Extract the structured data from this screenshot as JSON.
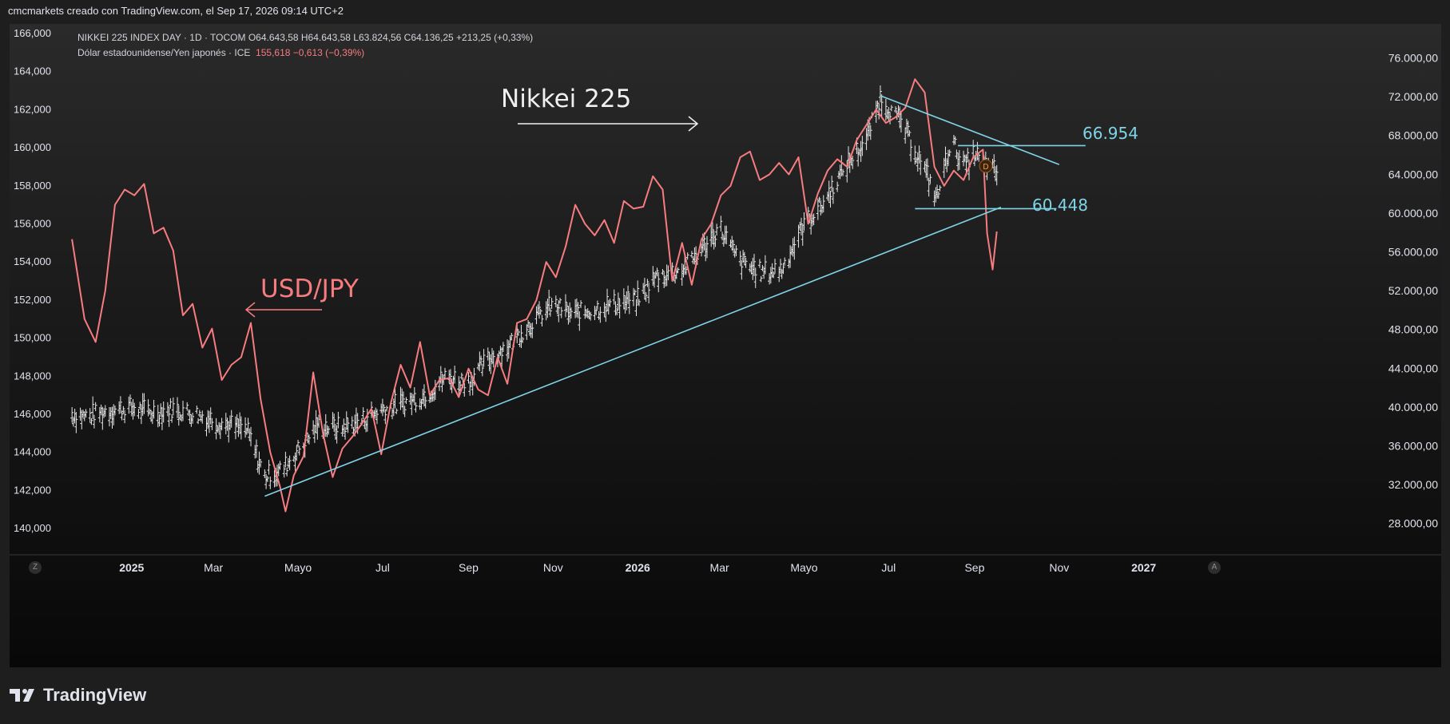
{
  "header": {
    "attribution": "cmcmarkets creado con TradingView.com, el Sep 17, 2026 09:14 UTC+2"
  },
  "legend": {
    "line1": "NIKKEI 225 INDEX DAY · 1D · TOCOM  O64.643,58  H64.643,58  L63.824,56  C64.136,25  +213,25 (+0,33%)",
    "line2_label": "Dólar estadounidense/Yen japonés · ICE",
    "line2_values": "155,618  −0,613 (−0,39%)"
  },
  "annotations": {
    "nikkei_label": "Nikkei 225",
    "usdjpy_label": "USD/JPY",
    "level_upper": "66.954",
    "level_lower": "60.448",
    "marker": "D"
  },
  "footer": {
    "brand": "TradingView"
  },
  "badges": {
    "left": "Z",
    "right": "A"
  },
  "colors": {
    "usdjpy": "#f77c80",
    "nikkei": "#e8e8e8",
    "trendline": "#7fd4e8",
    "background": "#1e1e1e"
  },
  "chart_data": {
    "type": "line",
    "x_ticks": [
      "2025",
      "Mar",
      "Mayo",
      "Jul",
      "Sep",
      "Nov",
      "2026",
      "Mar",
      "Mayo",
      "Jul",
      "Sep",
      "Nov",
      "2027"
    ],
    "left_axis": {
      "range": [
        139000,
        166500
      ],
      "ticks": [
        "166,000",
        "164,000",
        "162,000",
        "160,000",
        "158,000",
        "156,000",
        "154,000",
        "152,000",
        "150,000",
        "148,000",
        "146,000",
        "144,000",
        "142,000",
        "140,000"
      ]
    },
    "right_axis": {
      "range": [
        25500,
        79500
      ],
      "ticks": [
        "76.000,00",
        "72.000,00",
        "68.000,00",
        "64.000,00",
        "60.000,00",
        "56.000,00",
        "52.000,00",
        "48.000,00",
        "44.000,00",
        "40.000,00",
        "36.000,00",
        "32.000,00",
        "28.000,00"
      ]
    },
    "series": [
      {
        "name": "Dólar estadounidense/Yen japonés",
        "axis": "left",
        "points": [
          [
            "2024-11-19",
            155.2
          ],
          [
            "2024-11-28",
            151.0
          ],
          [
            "2024-12-06",
            149.8
          ],
          [
            "2024-12-13",
            152.5
          ],
          [
            "2024-12-20",
            157.0
          ],
          [
            "2024-12-27",
            157.8
          ],
          [
            "2025-01-03",
            157.5
          ],
          [
            "2025-01-10",
            158.1
          ],
          [
            "2025-01-17",
            155.5
          ],
          [
            "2025-01-24",
            155.8
          ],
          [
            "2025-01-31",
            154.6
          ],
          [
            "2025-02-07",
            151.2
          ],
          [
            "2025-02-14",
            151.8
          ],
          [
            "2025-02-21",
            149.5
          ],
          [
            "2025-02-28",
            150.5
          ],
          [
            "2025-03-07",
            147.8
          ],
          [
            "2025-03-14",
            148.6
          ],
          [
            "2025-03-21",
            149.0
          ],
          [
            "2025-03-28",
            150.8
          ],
          [
            "2025-04-04",
            146.8
          ],
          [
            "2025-04-11",
            144.0
          ],
          [
            "2025-04-18",
            142.2
          ],
          [
            "2025-04-22",
            140.9
          ],
          [
            "2025-04-28",
            142.8
          ],
          [
            "2025-05-05",
            143.8
          ],
          [
            "2025-05-12",
            148.2
          ],
          [
            "2025-05-19",
            145.0
          ],
          [
            "2025-05-26",
            142.7
          ],
          [
            "2025-06-02",
            144.2
          ],
          [
            "2025-06-09",
            144.8
          ],
          [
            "2025-06-16",
            145.5
          ],
          [
            "2025-06-23",
            146.3
          ],
          [
            "2025-06-30",
            143.9
          ],
          [
            "2025-07-07",
            146.6
          ],
          [
            "2025-07-14",
            148.6
          ],
          [
            "2025-07-21",
            147.4
          ],
          [
            "2025-07-28",
            149.8
          ],
          [
            "2025-08-04",
            147.0
          ],
          [
            "2025-08-11",
            147.8
          ],
          [
            "2025-08-18",
            147.9
          ],
          [
            "2025-08-25",
            146.9
          ],
          [
            "2025-09-01",
            148.4
          ],
          [
            "2025-09-08",
            147.3
          ],
          [
            "2025-09-15",
            147.0
          ],
          [
            "2025-09-22",
            149.0
          ],
          [
            "2025-09-29",
            147.6
          ],
          [
            "2025-10-06",
            150.8
          ],
          [
            "2025-10-13",
            151.0
          ],
          [
            "2025-10-20",
            152.0
          ],
          [
            "2025-10-27",
            154.0
          ],
          [
            "2025-11-03",
            153.2
          ],
          [
            "2025-11-10",
            154.8
          ],
          [
            "2025-11-17",
            157.0
          ],
          [
            "2025-11-24",
            156.0
          ],
          [
            "2025-12-01",
            155.4
          ],
          [
            "2025-12-08",
            156.2
          ],
          [
            "2025-12-15",
            155.0
          ],
          [
            "2025-12-22",
            157.2
          ],
          [
            "2025-12-29",
            156.8
          ],
          [
            "2026-01-05",
            156.9
          ],
          [
            "2026-01-12",
            158.5
          ],
          [
            "2026-01-19",
            157.8
          ],
          [
            "2026-01-26",
            153.0
          ],
          [
            "2026-02-02",
            155.0
          ],
          [
            "2026-02-09",
            152.8
          ],
          [
            "2026-02-16",
            155.2
          ],
          [
            "2026-02-23",
            156.0
          ],
          [
            "2026-03-02",
            157.5
          ],
          [
            "2026-03-09",
            158.0
          ],
          [
            "2026-03-16",
            159.5
          ],
          [
            "2026-03-23",
            159.8
          ],
          [
            "2026-03-30",
            158.3
          ],
          [
            "2026-04-06",
            158.6
          ],
          [
            "2026-04-13",
            159.2
          ],
          [
            "2026-04-20",
            158.6
          ],
          [
            "2026-04-27",
            159.5
          ],
          [
            "2026-05-04",
            156.0
          ],
          [
            "2026-05-11",
            157.6
          ],
          [
            "2026-05-18",
            158.8
          ],
          [
            "2026-05-25",
            159.4
          ],
          [
            "2026-06-01",
            159.0
          ],
          [
            "2026-06-08",
            160.4
          ],
          [
            "2026-06-15",
            161.2
          ],
          [
            "2026-06-22",
            162.0
          ],
          [
            "2026-06-29",
            161.3
          ],
          [
            "2026-07-06",
            161.6
          ],
          [
            "2026-07-13",
            162.1
          ],
          [
            "2026-07-20",
            163.6
          ],
          [
            "2026-07-27",
            162.9
          ],
          [
            "2026-08-03",
            159.0
          ],
          [
            "2026-08-10",
            158.0
          ],
          [
            "2026-08-17",
            158.8
          ],
          [
            "2026-08-24",
            158.3
          ],
          [
            "2026-08-31",
            159.5
          ],
          [
            "2026-09-07",
            159.9
          ],
          [
            "2026-09-10",
            155.5
          ],
          [
            "2026-09-14",
            153.6
          ],
          [
            "2026-09-17",
            155.6
          ]
        ]
      },
      {
        "name": "NIKKEI 225 INDEX",
        "axis": "right",
        "points": [
          [
            "2024-11-19",
            39200
          ],
          [
            "2024-12-01",
            39000
          ],
          [
            "2024-12-15",
            39600
          ],
          [
            "2025-01-01",
            39900
          ],
          [
            "2025-01-15",
            39400
          ],
          [
            "2025-02-01",
            39700
          ],
          [
            "2025-02-15",
            39300
          ],
          [
            "2025-03-01",
            38600
          ],
          [
            "2025-03-15",
            38000
          ],
          [
            "2025-03-25",
            37600
          ],
          [
            "2025-04-07",
            32800
          ],
          [
            "2025-04-20",
            33500
          ],
          [
            "2025-05-01",
            35500
          ],
          [
            "2025-05-15",
            38000
          ],
          [
            "2025-06-01",
            37800
          ],
          [
            "2025-06-15",
            38500
          ],
          [
            "2025-07-01",
            39800
          ],
          [
            "2025-07-15",
            40300
          ],
          [
            "2025-08-01",
            41200
          ],
          [
            "2025-08-15",
            43000
          ],
          [
            "2025-09-01",
            42600
          ],
          [
            "2025-09-15",
            44800
          ],
          [
            "2025-10-01",
            46500
          ],
          [
            "2025-10-15",
            48500
          ],
          [
            "2025-11-01",
            50500
          ],
          [
            "2025-11-15",
            49500
          ],
          [
            "2025-12-01",
            50100
          ],
          [
            "2025-12-15",
            50600
          ],
          [
            "2026-01-01",
            51000
          ],
          [
            "2026-01-15",
            53500
          ],
          [
            "2026-02-01",
            54000
          ],
          [
            "2026-02-15",
            56000
          ],
          [
            "2026-03-01",
            58500
          ],
          [
            "2026-03-15",
            55000
          ],
          [
            "2026-04-01",
            53800
          ],
          [
            "2026-04-15",
            54200
          ],
          [
            "2026-05-01",
            58800
          ],
          [
            "2026-05-15",
            61000
          ],
          [
            "2026-06-01",
            65000
          ],
          [
            "2026-06-15",
            67500
          ],
          [
            "2026-06-25",
            71800
          ],
          [
            "2026-07-10",
            69300
          ],
          [
            "2026-07-25",
            65000
          ],
          [
            "2026-08-05",
            61500
          ],
          [
            "2026-08-15",
            67500
          ],
          [
            "2026-08-25",
            64800
          ],
          [
            "2026-09-01",
            66000
          ],
          [
            "2026-09-10",
            64700
          ],
          [
            "2026-09-17",
            64136
          ]
        ]
      }
    ],
    "drawings": [
      {
        "name": "ascending-trendline",
        "axis": "right",
        "from": [
          "2025-04-07",
          30800
        ],
        "to": [
          "2026-09-20",
          60600
        ]
      },
      {
        "name": "descending-trendline",
        "axis": "right",
        "from": [
          "2026-06-25",
          72100
        ],
        "to": [
          "2026-11-01",
          65000
        ]
      },
      {
        "name": "resistance-level",
        "axis": "right",
        "value": 66954,
        "from": "2026-08-20",
        "to": "2026-11-20"
      },
      {
        "name": "support-level",
        "axis": "right",
        "value": 60448,
        "from": "2026-07-20",
        "to": "2026-10-30"
      }
    ]
  }
}
